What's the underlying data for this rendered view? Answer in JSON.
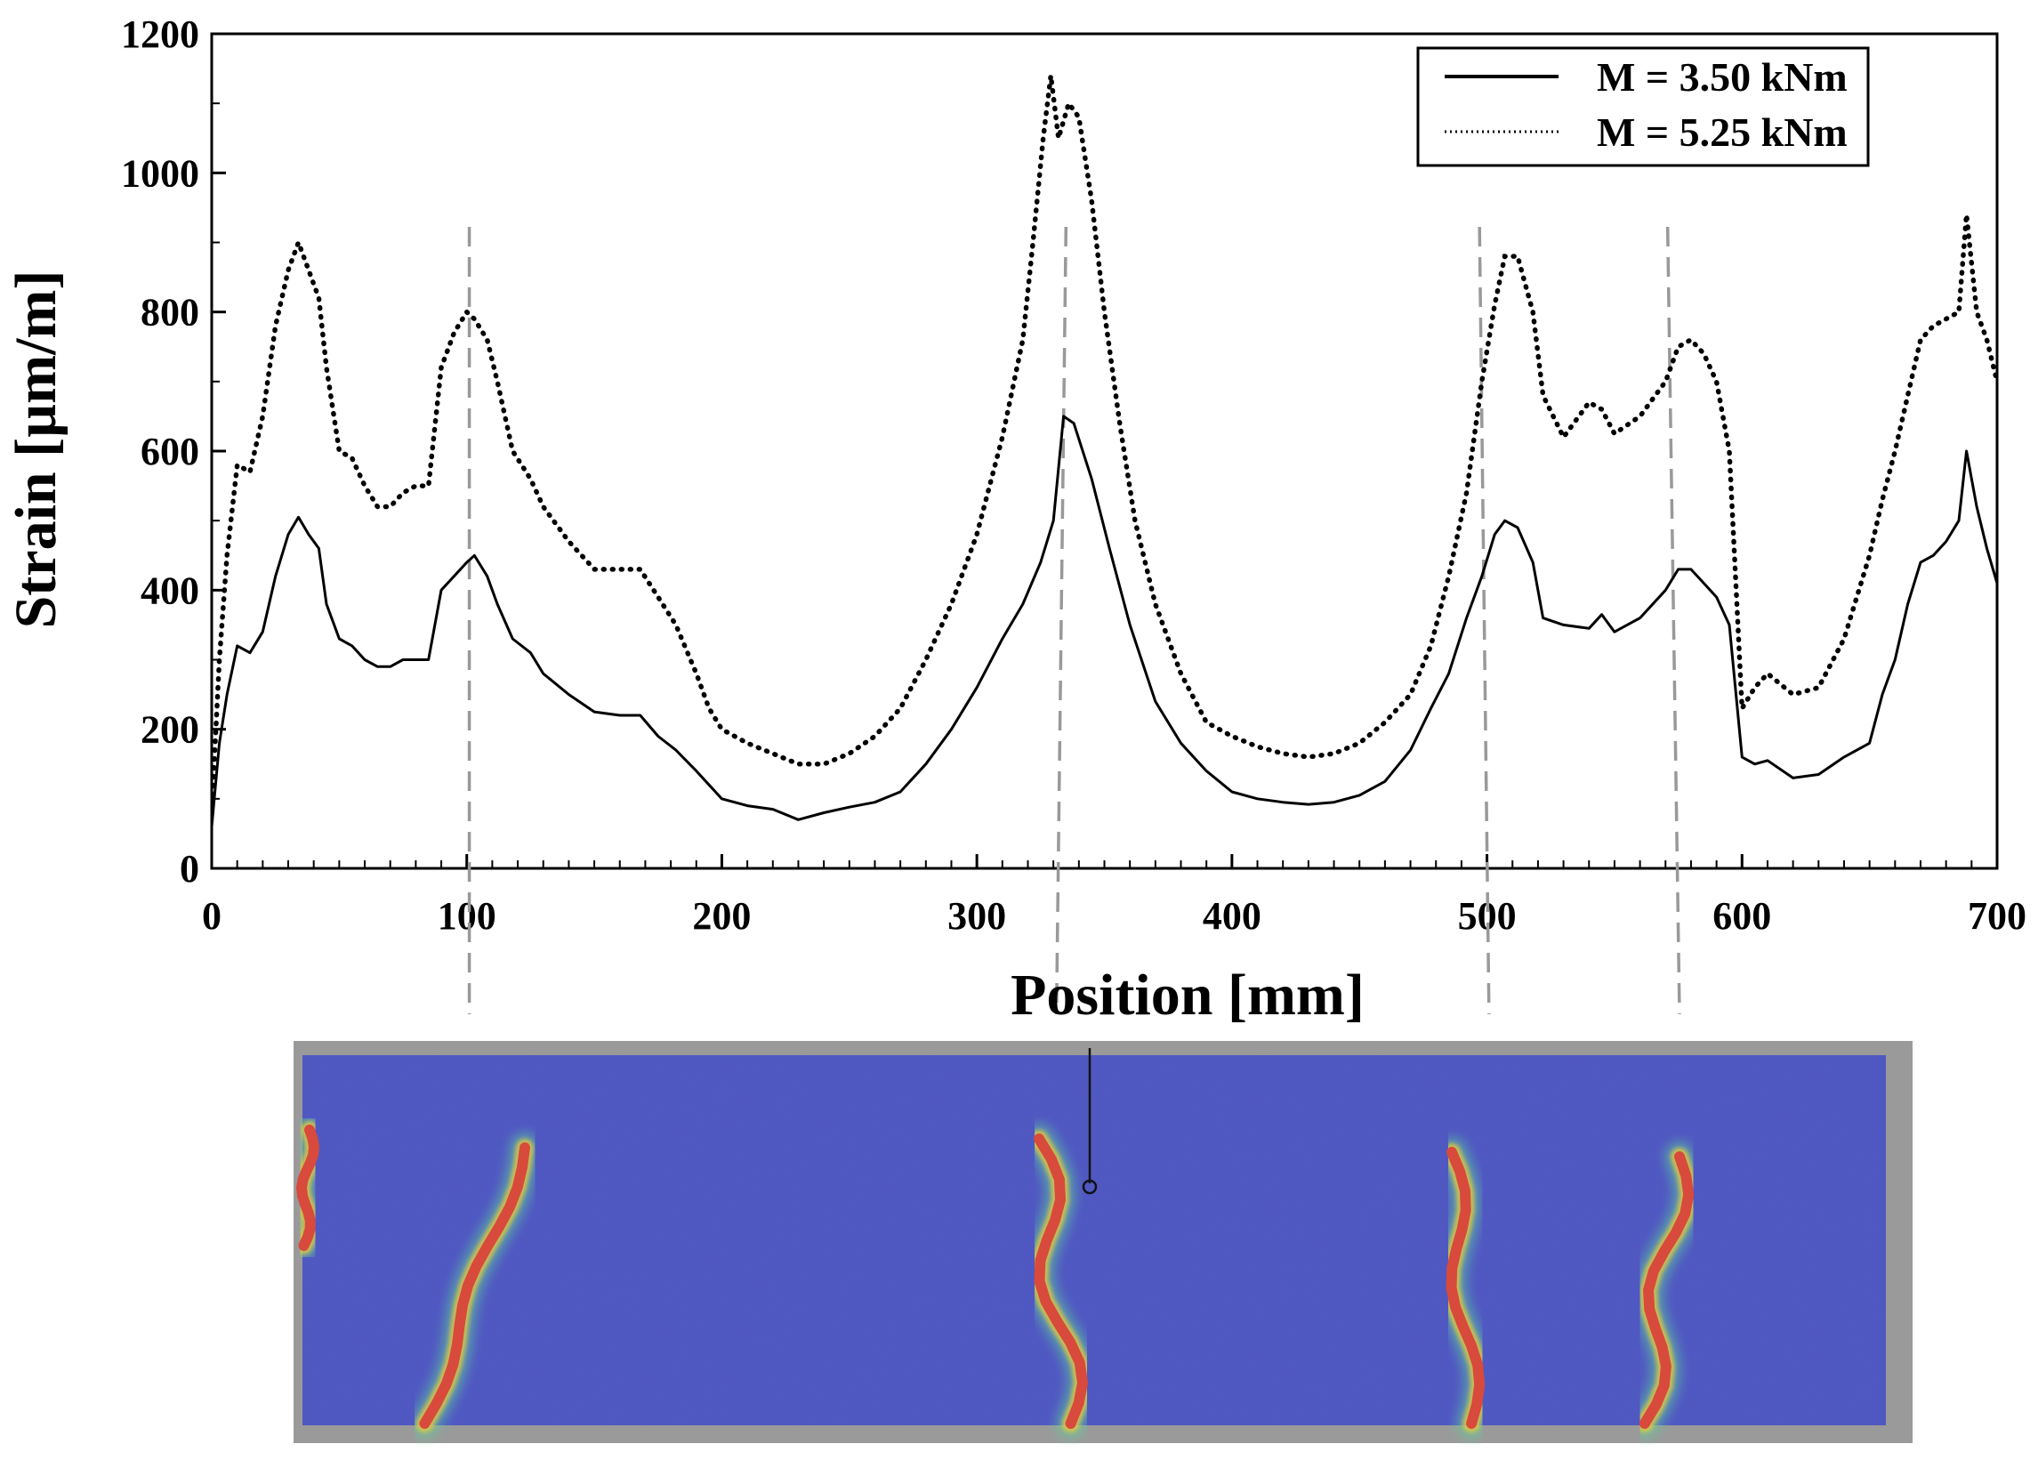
{
  "chart_data": {
    "type": "line",
    "title": "",
    "xlabel": "Position [mm]",
    "ylabel": "Strain [µm/m]",
    "xlim": [
      0,
      700
    ],
    "ylim": [
      0,
      1200
    ],
    "xticks": [
      "0",
      "100",
      "200",
      "300",
      "400",
      "500",
      "600",
      "700"
    ],
    "yticks": [
      "0",
      "200",
      "400",
      "600",
      "800",
      "1000",
      "1200"
    ],
    "grid": false,
    "legend_position": "top-right",
    "series": [
      {
        "name": "M = 3.50 kNm",
        "style": "solid",
        "color": "#000000",
        "x": [
          0,
          3,
          6,
          10,
          15,
          20,
          25,
          30,
          34,
          38,
          42,
          45,
          50,
          55,
          60,
          65,
          70,
          75,
          80,
          85,
          90,
          95,
          100,
          103,
          108,
          112,
          118,
          125,
          130,
          140,
          150,
          160,
          168,
          175,
          182,
          190,
          195,
          200,
          210,
          220,
          230,
          240,
          250,
          260,
          270,
          280,
          290,
          300,
          310,
          318,
          325,
          330,
          334,
          338,
          345,
          352,
          360,
          370,
          380,
          390,
          400,
          410,
          420,
          430,
          440,
          450,
          460,
          470,
          478,
          485,
          492,
          498,
          503,
          507,
          512,
          518,
          522,
          530,
          540,
          545,
          550,
          560,
          570,
          575,
          580,
          585,
          590,
          595,
          600,
          605,
          610,
          620,
          630,
          640,
          650,
          655,
          660,
          665,
          670,
          675,
          680,
          685,
          688,
          692,
          696,
          700
        ],
        "y": [
          60,
          180,
          250,
          320,
          310,
          340,
          420,
          480,
          505,
          480,
          460,
          380,
          330,
          320,
          300,
          290,
          290,
          300,
          300,
          300,
          400,
          420,
          440,
          450,
          420,
          380,
          330,
          310,
          280,
          250,
          225,
          220,
          220,
          190,
          170,
          140,
          120,
          100,
          90,
          85,
          70,
          80,
          88,
          95,
          110,
          150,
          200,
          260,
          330,
          380,
          440,
          500,
          650,
          640,
          560,
          460,
          350,
          240,
          180,
          140,
          110,
          100,
          95,
          92,
          95,
          105,
          125,
          170,
          230,
          280,
          360,
          420,
          480,
          500,
          490,
          440,
          360,
          350,
          345,
          365,
          340,
          360,
          400,
          430,
          430,
          410,
          390,
          350,
          160,
          150,
          155,
          130,
          135,
          160,
          180,
          250,
          300,
          380,
          440,
          450,
          470,
          500,
          600,
          520,
          460,
          410
        ]
      },
      {
        "name": "M = 5.25 kNm",
        "style": "dotted",
        "color": "#000000",
        "x": [
          0,
          3,
          6,
          10,
          15,
          20,
          25,
          30,
          34,
          38,
          42,
          45,
          50,
          55,
          60,
          65,
          70,
          75,
          80,
          85,
          90,
          95,
          100,
          103,
          108,
          112,
          118,
          125,
          130,
          140,
          150,
          160,
          168,
          175,
          182,
          190,
          195,
          200,
          210,
          220,
          230,
          240,
          250,
          260,
          270,
          280,
          290,
          300,
          310,
          318,
          322,
          326,
          329,
          332,
          336,
          340,
          345,
          350,
          356,
          362,
          370,
          380,
          390,
          400,
          410,
          420,
          430,
          440,
          450,
          460,
          470,
          478,
          485,
          492,
          498,
          503,
          507,
          512,
          518,
          522,
          530,
          540,
          545,
          550,
          560,
          570,
          575,
          580,
          585,
          590,
          595,
          600,
          605,
          610,
          620,
          630,
          640,
          650,
          655,
          660,
          665,
          670,
          675,
          680,
          685,
          688,
          692,
          696,
          700
        ],
        "y": [
          80,
          300,
          450,
          580,
          570,
          650,
          780,
          860,
          900,
          860,
          820,
          720,
          600,
          590,
          550,
          520,
          520,
          540,
          550,
          550,
          720,
          770,
          800,
          790,
          760,
          700,
          600,
          560,
          520,
          470,
          430,
          430,
          430,
          390,
          350,
          280,
          230,
          200,
          180,
          165,
          150,
          150,
          165,
          190,
          230,
          300,
          380,
          480,
          620,
          760,
          900,
          1050,
          1140,
          1050,
          1100,
          1080,
          960,
          800,
          640,
          500,
          380,
          280,
          210,
          190,
          175,
          165,
          160,
          165,
          180,
          210,
          250,
          320,
          420,
          540,
          700,
          810,
          880,
          880,
          800,
          680,
          620,
          670,
          660,
          625,
          650,
          700,
          750,
          760,
          740,
          700,
          600,
          230,
          260,
          280,
          250,
          260,
          330,
          450,
          530,
          600,
          680,
          760,
          780,
          790,
          800,
          940,
          800,
          760,
          700
        ]
      }
    ]
  },
  "crack_positions_mm": [
    101,
    334,
    498,
    572
  ],
  "image_colors": {
    "specimen_base": "#5058c6",
    "crack_core": "#d84a3c",
    "crack_halo": "#5ed09a",
    "specimen_border": "#9a9a9a"
  }
}
